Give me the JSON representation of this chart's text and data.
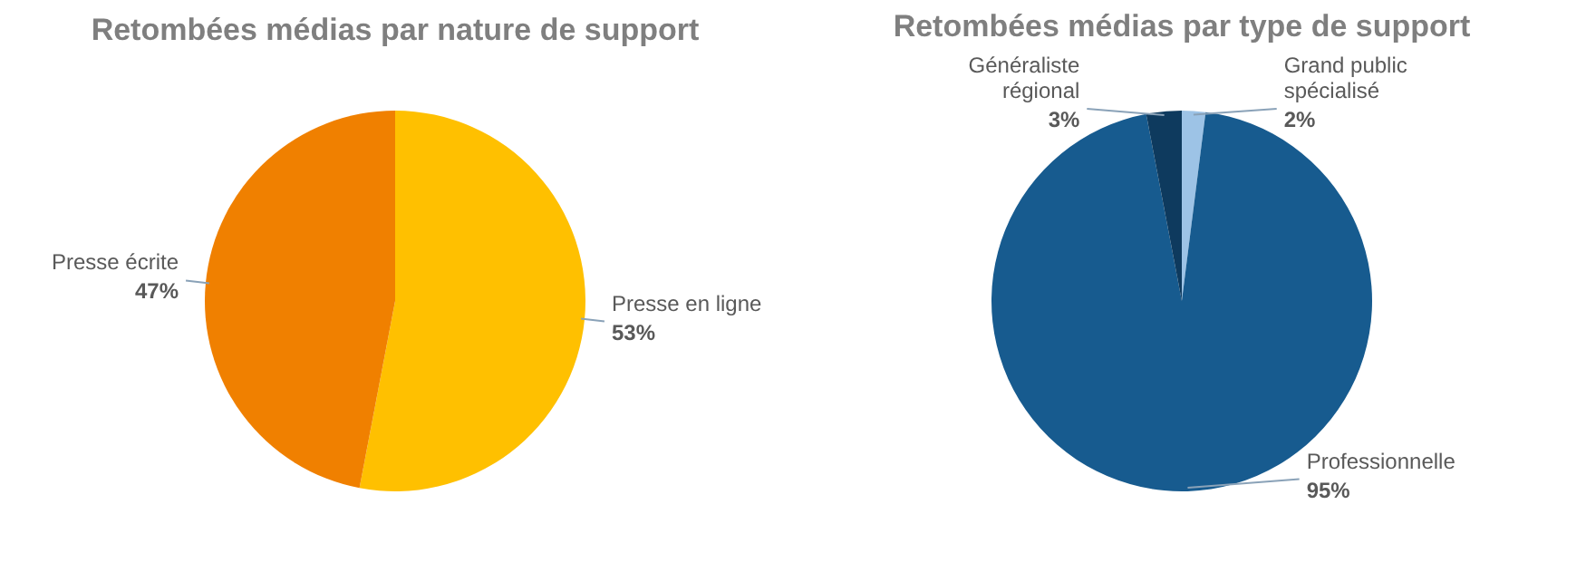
{
  "chart_data": [
    {
      "type": "pie",
      "title": "Retombées médias par nature de support",
      "categories": [
        "Presse en ligne",
        "Presse écrite"
      ],
      "values": [
        53,
        47
      ],
      "colors": [
        "#ffc000",
        "#f08000"
      ],
      "value_labels": [
        "53%",
        "47%"
      ]
    },
    {
      "type": "pie",
      "title": "Retombées médias par type de support",
      "categories": [
        "Grand public spécialisé",
        "Professionnelle",
        "Généraliste régional"
      ],
      "values": [
        2,
        95,
        3
      ],
      "colors": [
        "#9dc3e6",
        "#175b8f",
        "#0e3a5e"
      ],
      "value_labels": [
        "2%",
        "95%",
        "3%"
      ]
    }
  ]
}
